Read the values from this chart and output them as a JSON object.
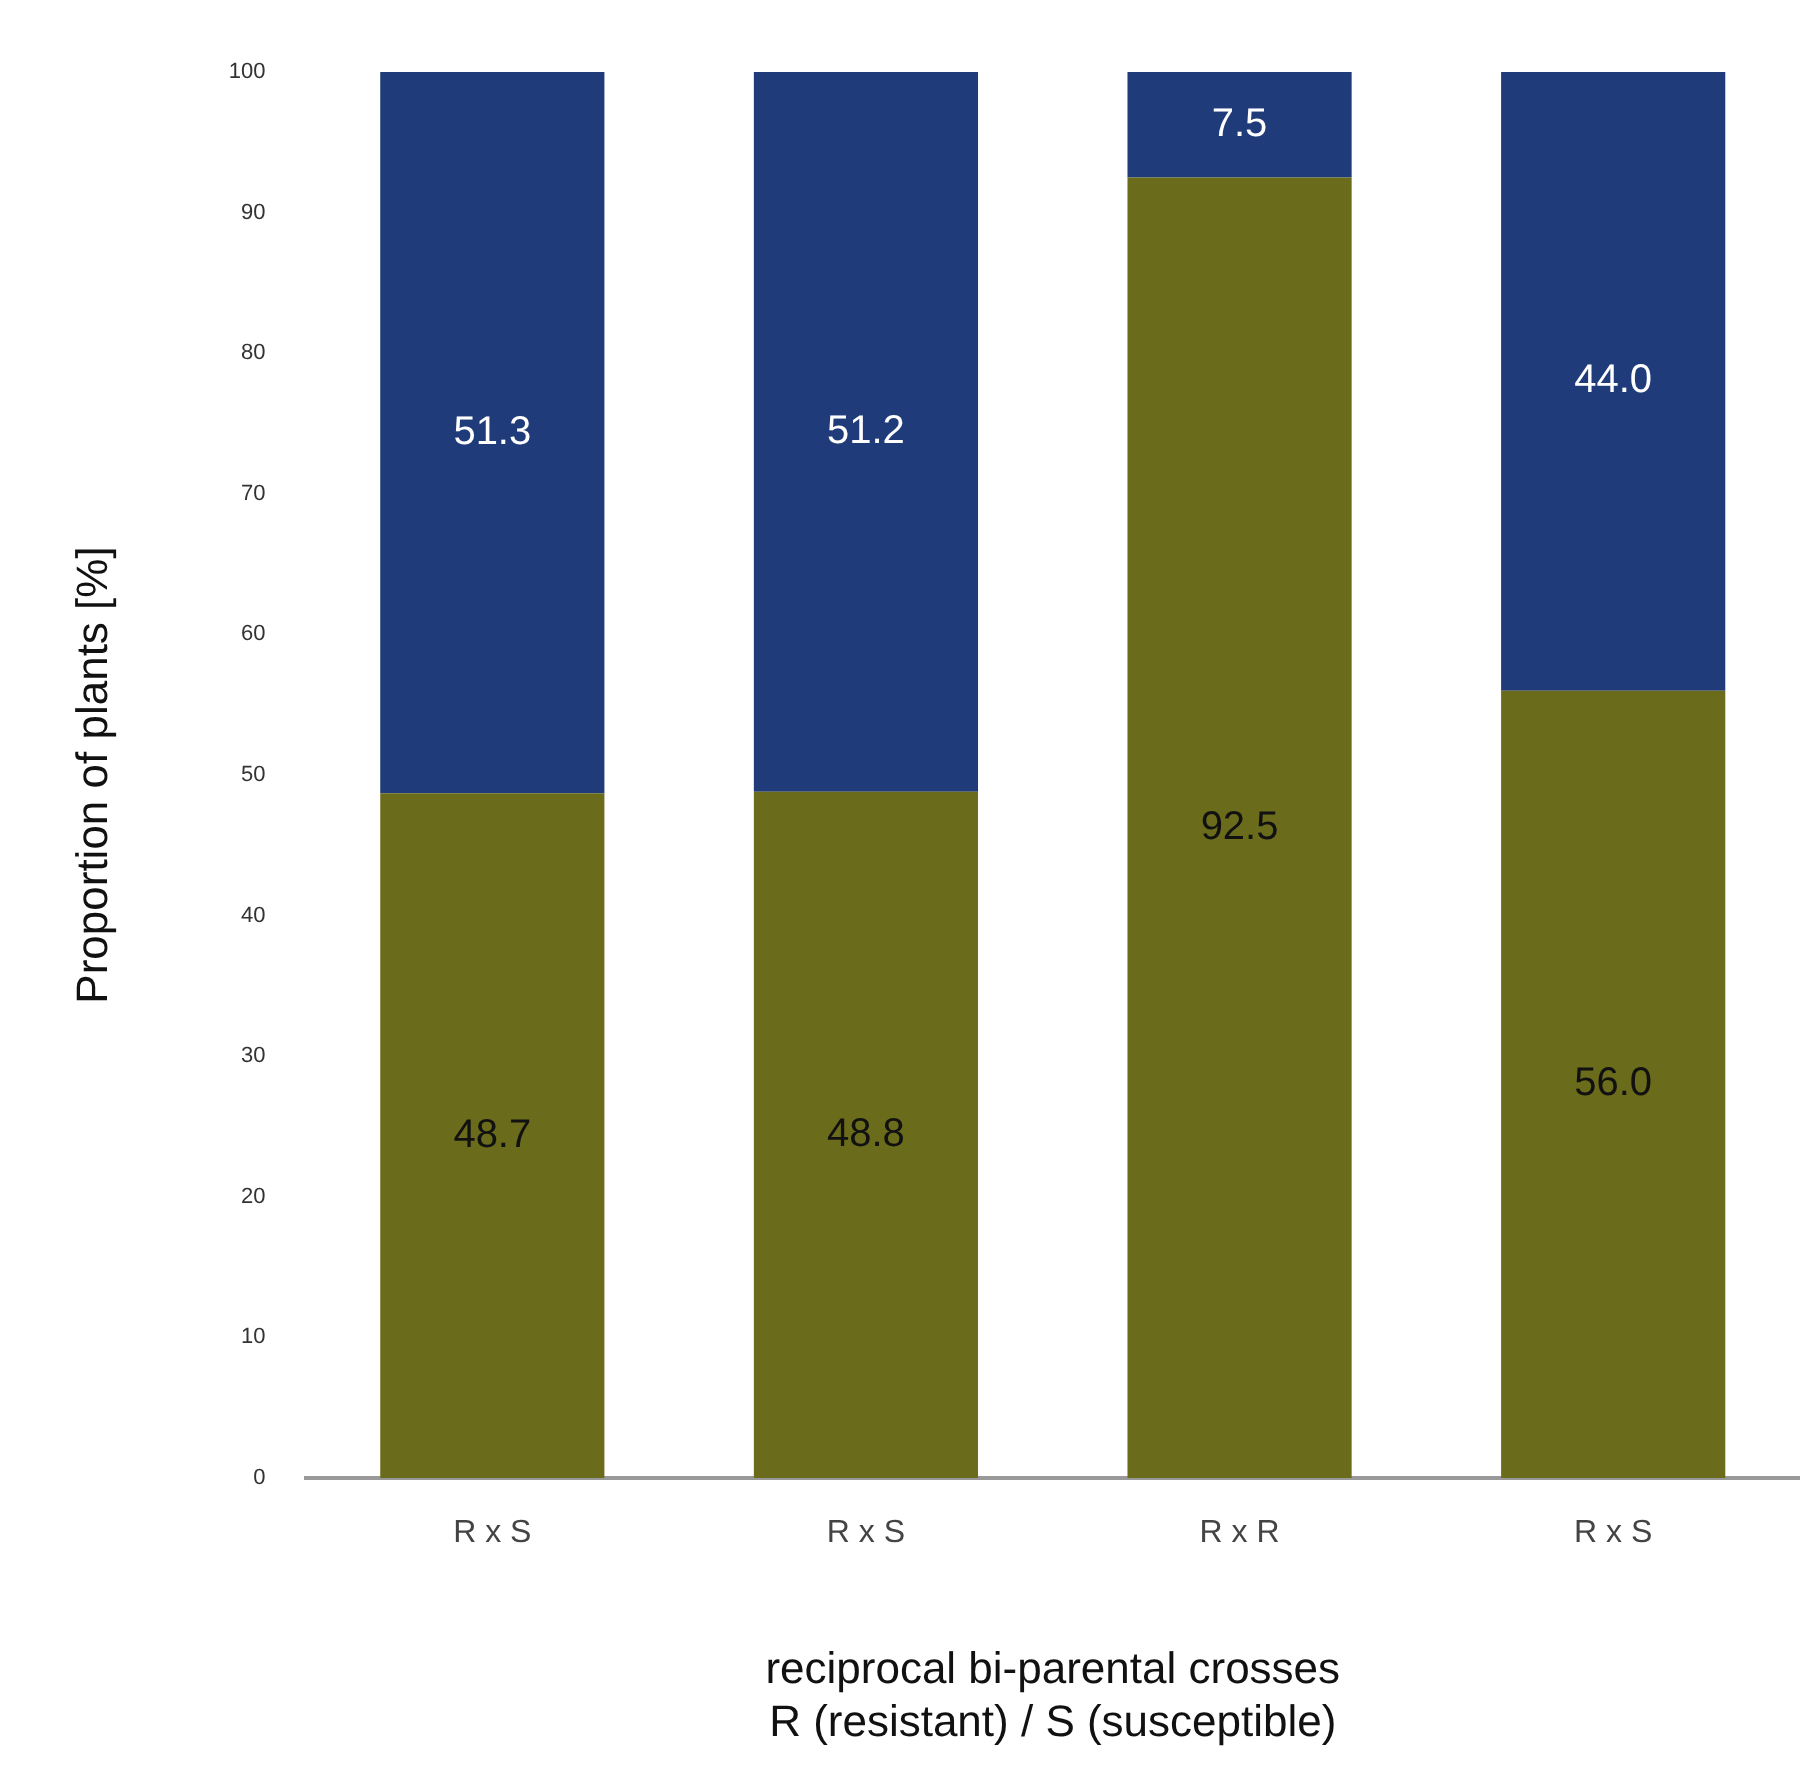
{
  "chart_data": {
    "type": "bar",
    "stacked": true,
    "xlabel": "reciprocal bi-parental crosses\nR (resistant) / S (susceptible)",
    "ylabel": "Proportion of plants [%]",
    "categories": [
      "R x S",
      "R x S",
      "R x R",
      "R x S"
    ],
    "series": [
      {
        "color": "#6b6b1c",
        "values": [
          48.7,
          48.8,
          92.5,
          56.0
        ],
        "value_labels": [
          "48.7",
          "48.8",
          "92.5",
          "56.0"
        ]
      },
      {
        "color": "#1f3b79",
        "values": [
          51.3,
          51.2,
          7.5,
          44.0
        ],
        "value_labels": [
          "51.3",
          "51.2",
          "7.5",
          "44.0"
        ]
      }
    ],
    "ylim": [
      0,
      100
    ],
    "yticks": [
      0,
      10,
      20,
      30,
      40,
      50,
      60,
      70,
      80,
      90,
      100
    ],
    "grid": false,
    "legend": false
  }
}
